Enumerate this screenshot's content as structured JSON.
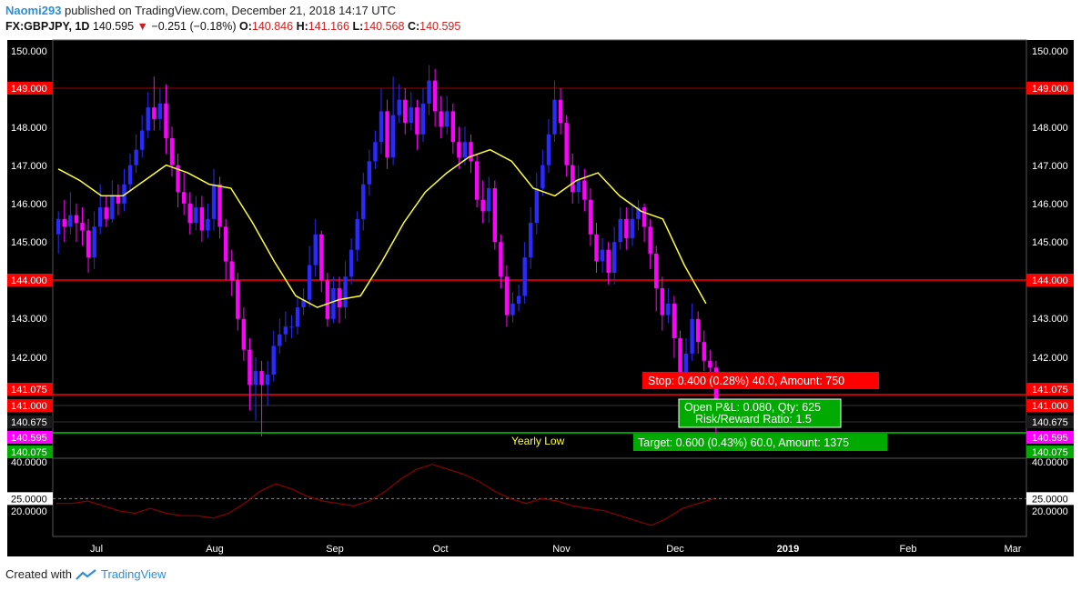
{
  "header": {
    "user": "Naomi293",
    "published_text": "published on TradingView.com, December 21, 2018 14:17 UTC",
    "symbol": "FX:GBPJPY, 1D",
    "last": "140.595",
    "change": "−0.251 (−0.18%)",
    "open_label": "O:",
    "open": "140.846",
    "high_label": "H:",
    "high": "141.166",
    "low_label": "L:",
    "low": "140.568",
    "close_label": "C:",
    "close": "140.595"
  },
  "footer": {
    "created_with": "Created with",
    "brand": "TradingView"
  },
  "colors": {
    "bg": "#000000",
    "bull": "#2a2aff",
    "bear": "#ff00ff",
    "ma": "#ffff33",
    "hline": "#ff0000",
    "low_line": "#00cc00",
    "stop_box": "#ff0000",
    "target_box": "#00aa00",
    "rsi": "#8b0000"
  },
  "chart_data": {
    "type": "candlestick",
    "ylim": [
      140.075,
      150.0
    ],
    "y_ticks": [
      "150.000",
      "149.000",
      "148.000",
      "147.000",
      "146.000",
      "145.000",
      "144.000",
      "143.000",
      "142.000",
      "141.075",
      "141.000",
      "140.675",
      "140.595",
      "140.075"
    ],
    "x_ticks": [
      "Jul",
      "Aug",
      "Sep",
      "Oct",
      "Nov",
      "Dec",
      "2019",
      "Feb",
      "Mar"
    ],
    "horizontal_levels": [
      {
        "value": 149.0,
        "label": "149.000"
      },
      {
        "value": 144.0,
        "label": "144.000"
      },
      {
        "value": 141.075,
        "label": "141.075"
      },
      {
        "value": 141.0,
        "label": "141.000"
      },
      {
        "value": 140.675,
        "label": "140.675"
      },
      {
        "value": 140.595,
        "label": "140.595"
      },
      {
        "value": 140.075,
        "label": "140.075"
      }
    ],
    "annotations": {
      "yearly_low": "Yearly Low",
      "stop": "Stop: 0.400 (0.28%) 40.0, Amount: 750",
      "open_pnl": "Open P&L: 0.080, Qty: 625",
      "risk_reward": "Risk/Reward Ratio: 1.5",
      "target": "Target: 0.600 (0.43%) 60.0, Amount: 1375"
    },
    "ma_series": [
      146.9,
      146.6,
      146.2,
      146.2,
      146.6,
      147.0,
      146.8,
      146.5,
      146.4,
      145.5,
      144.5,
      143.6,
      143.3,
      143.5,
      143.6,
      144.5,
      145.5,
      146.3,
      146.8,
      147.2,
      147.4,
      147.1,
      146.4,
      146.2,
      146.6,
      146.8,
      146.2,
      145.8,
      145.6,
      144.4,
      143.4
    ],
    "candles": [
      [
        145.2,
        145.6,
        145.8,
        144.7
      ],
      [
        145.6,
        145.4,
        146.1,
        145.0
      ],
      [
        145.4,
        145.7,
        146.3,
        145.2
      ],
      [
        145.7,
        145.5,
        146.0,
        145.0
      ],
      [
        145.5,
        145.3,
        145.9,
        144.9
      ],
      [
        145.3,
        144.6,
        145.6,
        144.2
      ],
      [
        144.6,
        145.4,
        145.8,
        144.3
      ],
      [
        145.4,
        145.9,
        146.5,
        145.2
      ],
      [
        145.9,
        145.6,
        146.2,
        145.4
      ],
      [
        145.6,
        146.2,
        146.6,
        145.5
      ],
      [
        146.2,
        146.0,
        146.5,
        145.7
      ],
      [
        146.0,
        146.5,
        146.9,
        145.8
      ],
      [
        146.5,
        147.0,
        147.3,
        146.3
      ],
      [
        147.0,
        147.4,
        147.8,
        146.8
      ],
      [
        147.4,
        147.9,
        148.3,
        147.2
      ],
      [
        147.9,
        148.5,
        148.9,
        147.7
      ],
      [
        148.5,
        148.2,
        149.3,
        147.9
      ],
      [
        148.2,
        148.6,
        149.0,
        147.9
      ],
      [
        148.6,
        147.7,
        149.1,
        147.3
      ],
      [
        147.7,
        147.0,
        148.0,
        146.7
      ],
      [
        147.0,
        146.3,
        147.3,
        145.9
      ],
      [
        146.3,
        146.0,
        146.8,
        145.7
      ],
      [
        146.0,
        145.5,
        146.3,
        145.2
      ],
      [
        145.5,
        145.9,
        146.2,
        145.3
      ],
      [
        145.9,
        145.3,
        146.2,
        145.0
      ],
      [
        145.3,
        145.6,
        146.0,
        145.1
      ],
      [
        145.6,
        146.5,
        146.9,
        145.3
      ],
      [
        146.5,
        145.4,
        146.7,
        145.1
      ],
      [
        145.4,
        144.5,
        145.6,
        144.0
      ],
      [
        144.5,
        144.0,
        144.8,
        143.6
      ],
      [
        144.0,
        143.0,
        144.2,
        142.7
      ],
      [
        143.0,
        142.2,
        143.3,
        141.9
      ],
      [
        142.2,
        141.2,
        142.5,
        140.9
      ],
      [
        141.2,
        141.6,
        142.0,
        140.7
      ],
      [
        141.6,
        141.2,
        141.9,
        140.6
      ],
      [
        141.2,
        141.5,
        141.9,
        141.0
      ],
      [
        141.5,
        142.3,
        142.7,
        141.3
      ],
      [
        142.3,
        142.6,
        143.0,
        142.1
      ],
      [
        142.6,
        142.8,
        143.2,
        142.4
      ],
      [
        142.8,
        142.8,
        143.1,
        142.5
      ],
      [
        142.8,
        143.3,
        143.6,
        142.6
      ],
      [
        143.3,
        143.5,
        143.8,
        143.1
      ],
      [
        143.5,
        144.4,
        144.9,
        143.3
      ],
      [
        144.4,
        145.2,
        145.6,
        144.1
      ],
      [
        145.2,
        144.0,
        145.3,
        143.7
      ],
      [
        144.0,
        143.0,
        144.2,
        142.8
      ],
      [
        143.0,
        143.8,
        144.1,
        142.9
      ],
      [
        143.8,
        143.3,
        144.1,
        142.9
      ],
      [
        143.3,
        144.1,
        144.5,
        143.0
      ],
      [
        144.1,
        144.8,
        145.1,
        143.9
      ],
      [
        144.8,
        145.6,
        145.8,
        144.5
      ],
      [
        145.6,
        146.5,
        146.8,
        145.3
      ],
      [
        146.5,
        147.1,
        147.4,
        146.2
      ],
      [
        147.1,
        147.6,
        147.9,
        146.9
      ],
      [
        147.6,
        148.4,
        149.0,
        147.3
      ],
      [
        148.4,
        147.2,
        148.7,
        146.9
      ],
      [
        147.2,
        148.3,
        149.3,
        147.0
      ],
      [
        148.3,
        148.7,
        149.1,
        148.1
      ],
      [
        148.7,
        148.1,
        149.0,
        147.8
      ],
      [
        148.1,
        148.5,
        148.9,
        147.9
      ],
      [
        148.5,
        147.8,
        148.7,
        147.4
      ],
      [
        147.8,
        148.6,
        149.0,
        147.6
      ],
      [
        148.6,
        149.2,
        149.6,
        148.3
      ],
      [
        149.2,
        148.4,
        149.5,
        148.0
      ],
      [
        148.4,
        148.0,
        148.8,
        147.7
      ],
      [
        148.0,
        148.4,
        148.8,
        147.8
      ],
      [
        148.4,
        147.6,
        148.6,
        147.3
      ],
      [
        147.6,
        147.2,
        148.0,
        146.9
      ],
      [
        147.2,
        147.6,
        148.0,
        147.0
      ],
      [
        147.6,
        147.1,
        147.8,
        146.8
      ],
      [
        147.1,
        146.1,
        147.3,
        145.9
      ],
      [
        146.1,
        145.8,
        146.6,
        145.5
      ],
      [
        145.8,
        146.4,
        146.7,
        145.5
      ],
      [
        146.4,
        145.0,
        146.6,
        144.8
      ],
      [
        145.0,
        144.1,
        145.2,
        143.8
      ],
      [
        144.1,
        143.1,
        144.4,
        142.8
      ],
      [
        143.1,
        143.4,
        143.7,
        142.9
      ],
      [
        143.4,
        143.6,
        143.9,
        143.2
      ],
      [
        143.6,
        144.6,
        145.0,
        143.4
      ],
      [
        144.6,
        145.5,
        145.9,
        144.3
      ],
      [
        145.5,
        146.4,
        146.8,
        145.2
      ],
      [
        146.4,
        147.0,
        147.4,
        146.2
      ],
      [
        147.0,
        147.8,
        148.2,
        146.8
      ],
      [
        147.8,
        148.7,
        149.2,
        147.6
      ],
      [
        148.7,
        148.1,
        149.0,
        147.8
      ],
      [
        148.1,
        147.0,
        148.3,
        146.7
      ],
      [
        147.0,
        146.3,
        147.3,
        146.0
      ],
      [
        146.3,
        146.6,
        147.0,
        146.0
      ],
      [
        146.6,
        146.1,
        146.9,
        145.8
      ],
      [
        146.1,
        145.2,
        146.4,
        144.9
      ],
      [
        145.2,
        144.5,
        145.5,
        144.2
      ],
      [
        144.5,
        144.8,
        145.1,
        144.2
      ],
      [
        144.8,
        144.2,
        145.0,
        143.9
      ],
      [
        144.2,
        145.0,
        145.4,
        143.9
      ],
      [
        145.0,
        145.6,
        145.9,
        144.8
      ],
      [
        145.6,
        145.1,
        145.9,
        144.8
      ],
      [
        145.1,
        145.6,
        146.0,
        144.9
      ],
      [
        145.6,
        145.9,
        146.1,
        145.3
      ],
      [
        145.9,
        145.4,
        146.0,
        145.0
      ],
      [
        145.4,
        144.7,
        145.6,
        144.3
      ],
      [
        144.7,
        143.8,
        144.9,
        143.2
      ],
      [
        143.8,
        143.1,
        144.1,
        142.7
      ],
      [
        143.1,
        143.4,
        143.8,
        142.9
      ],
      [
        143.4,
        142.5,
        143.6,
        142.0
      ],
      [
        142.5,
        141.4,
        142.7,
        141.1
      ],
      [
        141.4,
        142.1,
        142.5,
        141.1
      ],
      [
        142.1,
        143.0,
        143.4,
        141.9
      ],
      [
        143.0,
        142.4,
        143.2,
        142.1
      ],
      [
        142.4,
        141.9,
        142.7,
        141.6
      ],
      [
        141.9,
        141.7,
        142.2,
        141.4
      ],
      [
        141.7,
        140.9,
        141.9,
        140.6
      ]
    ],
    "rsi": {
      "ylim": [
        10,
        45
      ],
      "ticks": [
        "40.0000",
        "25.0000",
        "20.0000"
      ],
      "level": 25,
      "values": [
        23,
        23,
        24,
        22,
        20,
        19,
        21,
        19,
        18,
        18,
        17,
        19,
        23,
        28,
        31,
        29,
        26,
        24,
        23,
        22,
        24,
        28,
        33,
        37,
        39,
        37,
        35,
        32,
        28,
        25,
        23,
        25,
        24,
        22,
        21,
        20,
        18,
        16,
        14,
        17,
        21,
        23,
        25
      ]
    }
  }
}
